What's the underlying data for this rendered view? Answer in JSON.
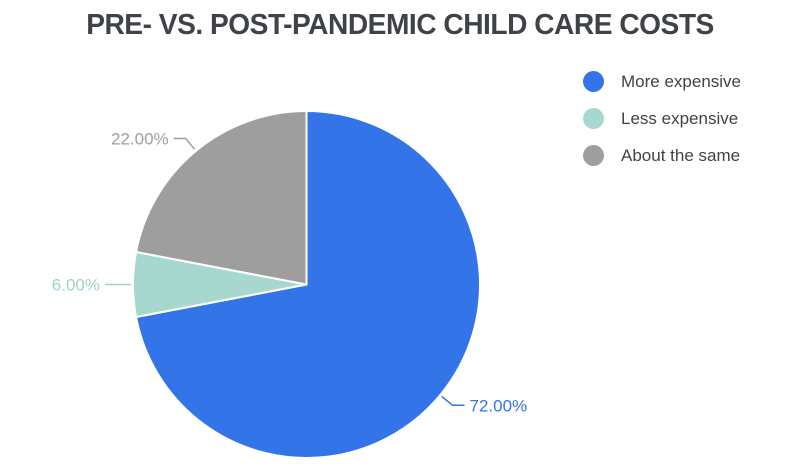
{
  "chart_data": {
    "type": "pie",
    "title": "PRE- VS. POST-PANDEMIC CHILD CARE COSTS",
    "labels": [
      "More expensive",
      "Less expensive",
      "About the same"
    ],
    "values": [
      72,
      6,
      22
    ],
    "display_labels": [
      "72.00%",
      "6.00%",
      "22.00%"
    ],
    "colors": [
      "#3374E8",
      "#A7D8CF",
      "#9E9E9E"
    ],
    "label_colors": [
      "#3374E8",
      "#9FD2C9",
      "#9E9E9E"
    ],
    "slice_border_color": "#FFFFFF",
    "title_color": "#3F4347",
    "legend_text_color": "#3F4347",
    "background_color": "#FFFFFF",
    "legend_position": "top-right",
    "start_angle_deg": 0,
    "direction": "clockwise"
  }
}
